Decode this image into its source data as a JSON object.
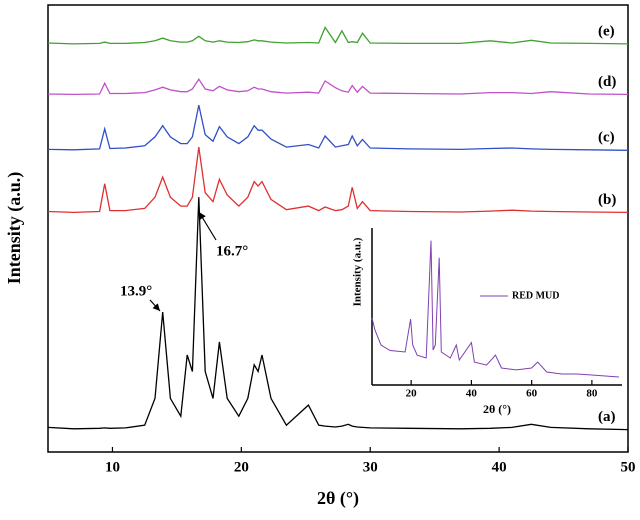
{
  "chart_data": [
    {
      "type": "line",
      "xlabel": "2θ (°)",
      "ylabel": "Intensity (a.u.)",
      "xlim": [
        5,
        50
      ],
      "xticks": [
        10,
        20,
        30,
        40,
        50
      ],
      "ylim": [
        0,
        100
      ],
      "x": [
        5,
        7,
        9,
        9.4,
        9.8,
        11,
        12.5,
        13.3,
        13.9,
        14.5,
        15.3,
        15.8,
        16.2,
        16.7,
        17.2,
        17.8,
        18.3,
        18.9,
        19.8,
        20.5,
        21,
        21.3,
        21.6,
        22.3,
        23.5,
        25.2,
        26,
        26.5,
        27.3,
        27.8,
        28.3,
        28.6,
        29,
        29.4,
        30,
        33,
        37,
        39.3,
        41,
        42.5,
        44,
        47,
        50
      ],
      "series": [
        {
          "name": "(a)",
          "color": "#000000",
          "values": [
            5.5,
            5.2,
            5.3,
            5.4,
            5.3,
            5.4,
            6,
            12,
            31.3,
            12,
            8,
            21.7,
            18,
            57,
            18,
            12,
            24.6,
            12,
            8,
            12,
            19.5,
            18,
            21.7,
            12,
            6,
            10.5,
            6,
            5.8,
            5.6,
            5.8,
            6.2,
            5.8,
            5.6,
            5.5,
            5.4,
            5.3,
            5.2,
            5.3,
            5.5,
            6.2,
            5.5,
            5.2,
            5.0
          ]
        },
        {
          "name": "(b)",
          "color": "#e03030",
          "values": [
            53.8,
            53.6,
            53.8,
            60,
            54,
            54,
            54.5,
            57,
            61.5,
            57,
            55,
            55,
            57,
            68.2,
            58,
            56,
            61,
            57.5,
            55,
            57,
            60.5,
            59.5,
            60.5,
            56.5,
            54.2,
            55,
            54,
            54.8,
            54,
            54.2,
            55,
            59.2,
            54.5,
            56,
            54,
            53.8,
            53.7,
            53.9,
            54.1,
            53.9,
            53.8,
            53.7,
            53.6
          ]
        },
        {
          "name": "(c)",
          "color": "#3050c8",
          "values": [
            67.7,
            67.6,
            67.8,
            72.3,
            67.9,
            68,
            68.5,
            70.5,
            73,
            70.5,
            69,
            69,
            70.5,
            77.6,
            71,
            69.5,
            72.8,
            70.5,
            69,
            70.5,
            73,
            72,
            72,
            70,
            68.2,
            68.8,
            68,
            70.7,
            68.2,
            68.5,
            68.8,
            70.7,
            68.5,
            69.9,
            68,
            67.8,
            67.7,
            67.9,
            68,
            67.8,
            67.7,
            67.6,
            67.5
          ]
        },
        {
          "name": "(d)",
          "color": "#c050c8",
          "values": [
            80.1,
            80,
            80.1,
            82.5,
            80.2,
            80.2,
            80.4,
            81,
            81.6,
            81,
            80.6,
            80.6,
            81.2,
            83.4,
            81.2,
            80.8,
            81.8,
            81,
            80.6,
            80.8,
            81.6,
            81.2,
            81.2,
            80.6,
            80.3,
            80.5,
            80.3,
            83,
            81.5,
            80.8,
            80.5,
            82,
            80.5,
            81.8,
            80.3,
            80.2,
            80.1,
            80.4,
            80.4,
            80.2,
            80.6,
            80.1,
            80
          ]
        },
        {
          "name": "(e)",
          "color": "#40a030",
          "values": [
            91.5,
            91.3,
            91.4,
            91.7,
            91.4,
            91.4,
            91.6,
            92,
            92.6,
            92,
            91.7,
            91.7,
            92,
            93,
            92,
            91.7,
            92,
            91.7,
            91.6,
            91.8,
            92.2,
            92,
            92,
            91.7,
            91.5,
            91.6,
            91.5,
            95,
            91.6,
            94.2,
            91.6,
            91.8,
            91.6,
            93.7,
            91.5,
            91.4,
            91.4,
            92,
            91.5,
            92.1,
            91.5,
            91.4,
            91.3
          ]
        }
      ],
      "annotations": [
        {
          "text": "13.9°"
        },
        {
          "text": "16.7°"
        }
      ]
    },
    {
      "type": "line",
      "xlabel": "2θ (°)",
      "ylabel": "Intensity (a.u.)",
      "xlim": [
        7,
        90
      ],
      "xticks": [
        20,
        40,
        60,
        80
      ],
      "ylim": [
        0,
        100
      ],
      "x": [
        7,
        8,
        10,
        13,
        18,
        19.8,
        20.5,
        22,
        25,
        26.6,
        27.3,
        28,
        29.3,
        30,
        33,
        35,
        36,
        40,
        41,
        45,
        48,
        50,
        55,
        60,
        62,
        65,
        70,
        75,
        80,
        85,
        89
      ],
      "series": [
        {
          "name": "RED MUD",
          "color": "#8040b0",
          "values": [
            42.7,
            35,
            25.5,
            22,
            21,
            42,
            25.5,
            19,
            17.2,
            92,
            22.3,
            25.5,
            81,
            21,
            17.2,
            25.5,
            15.9,
            27,
            14.6,
            12.7,
            19,
            10.8,
            9.6,
            10.8,
            14.6,
            8.3,
            7,
            7,
            6.4,
            5.7,
            5.1
          ]
        }
      ]
    }
  ]
}
